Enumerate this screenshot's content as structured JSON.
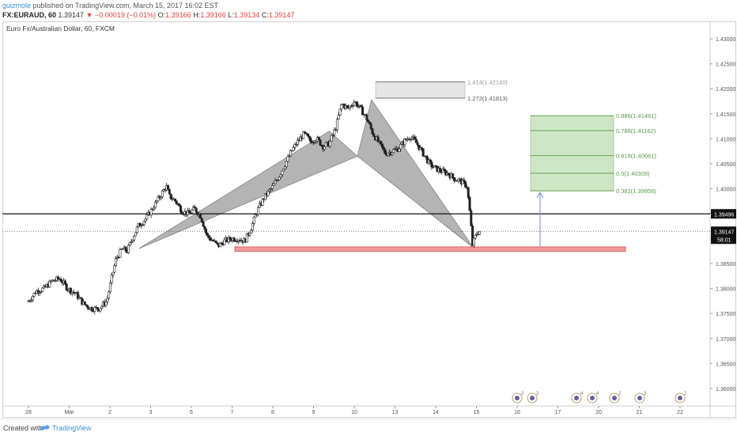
{
  "header": {
    "author": "guizmole",
    "published_text": "published on TradingView.com, March 15, 2017 16:02 EST",
    "symbol": "FX:EURAUD, 60",
    "last": "1.39147",
    "change": "−0.00019 (−0.01%)",
    "o_label": "O:",
    "o": "1.39166",
    "h_label": "H:",
    "h": "1.39166",
    "l_label": "L:",
    "l": "1.39134",
    "c_label": "C:",
    "c": "1.39147"
  },
  "footer": {
    "created_with": "Created with",
    "brand": "TradingView"
  },
  "colors": {
    "up": "#2a2a2a",
    "down": "#2a2a2a",
    "harmonic_fill": "#8c8c8c",
    "target_zone": "#cfe6c6",
    "target_line": "#5a9a48",
    "extension_fill": "#e6e6e6",
    "support_bar": "#f29a9a",
    "arrow": "#6f8fd1",
    "label_bg": "#111111"
  },
  "chart_data": {
    "type": "candlestick",
    "title": "Euro Fx/Australian Dollar, 60, FXCM",
    "xlabel": "",
    "ylabel": "",
    "x_ticks": [
      "28",
      "Mar",
      "2",
      "3",
      "6",
      "7",
      "8",
      "9",
      "10",
      "13",
      "14",
      "15",
      "16",
      "17",
      "20",
      "21",
      "22"
    ],
    "ylim": [
      1.3565,
      1.4335
    ],
    "y_ticks": [
      "1.43000",
      "1.42500",
      "1.42000",
      "1.41500",
      "1.41000",
      "1.40500",
      "1.40000",
      "1.39500",
      "1.39000",
      "1.38500",
      "1.38000",
      "1.37500",
      "1.37000",
      "1.36500",
      "1.36000"
    ],
    "trend_points": [
      [
        0,
        1.3775
      ],
      [
        0.5,
        1.3795
      ],
      [
        1.0,
        1.38
      ],
      [
        1.5,
        1.3815
      ],
      [
        2.0,
        1.382
      ],
      [
        2.5,
        1.38
      ],
      [
        3.0,
        1.379
      ],
      [
        3.5,
        1.377
      ],
      [
        4.0,
        1.376
      ],
      [
        4.5,
        1.376
      ],
      [
        5.0,
        1.3775
      ],
      [
        5.3,
        1.382
      ],
      [
        5.6,
        1.386
      ],
      [
        6.0,
        1.388
      ],
      [
        6.3,
        1.3875
      ],
      [
        6.7,
        1.3905
      ],
      [
        7.0,
        1.3925
      ],
      [
        7.5,
        1.394
      ],
      [
        8.0,
        1.3965
      ],
      [
        8.5,
        1.399
      ],
      [
        8.8,
        1.4005
      ],
      [
        9.0,
        1.3985
      ],
      [
        9.4,
        1.3975
      ],
      [
        9.8,
        1.3955
      ],
      [
        10.2,
        1.395
      ],
      [
        10.6,
        1.396
      ],
      [
        11.0,
        1.3945
      ],
      [
        11.4,
        1.3905
      ],
      [
        11.8,
        1.3895
      ],
      [
        12.1,
        1.3885
      ],
      [
        12.5,
        1.3895
      ],
      [
        13.0,
        1.39
      ],
      [
        13.4,
        1.39
      ],
      [
        13.8,
        1.3895
      ],
      [
        14.2,
        1.392
      ],
      [
        14.6,
        1.3955
      ],
      [
        15.0,
        1.398
      ],
      [
        15.5,
        1.4
      ],
      [
        16.0,
        1.4025
      ],
      [
        16.4,
        1.405
      ],
      [
        16.8,
        1.4075
      ],
      [
        17.2,
        1.4095
      ],
      [
        17.6,
        1.411
      ],
      [
        18.0,
        1.4095
      ],
      [
        18.4,
        1.41
      ],
      [
        18.8,
        1.4085
      ],
      [
        19.2,
        1.409
      ],
      [
        19.6,
        1.412
      ],
      [
        20.0,
        1.417
      ],
      [
        20.4,
        1.416
      ],
      [
        20.8,
        1.4175
      ],
      [
        21.2,
        1.416
      ],
      [
        21.6,
        1.414
      ],
      [
        22.0,
        1.411
      ],
      [
        22.4,
        1.409
      ],
      [
        22.8,
        1.407
      ],
      [
        23.2,
        1.4075
      ],
      [
        23.6,
        1.408
      ],
      [
        24.0,
        1.4095
      ],
      [
        24.4,
        1.4105
      ],
      [
        24.8,
        1.409
      ],
      [
        25.2,
        1.407
      ],
      [
        25.6,
        1.405
      ],
      [
        26.0,
        1.404
      ],
      [
        26.4,
        1.4035
      ],
      [
        26.8,
        1.403
      ],
      [
        27.2,
        1.402
      ],
      [
        27.6,
        1.4015
      ],
      [
        28.0,
        1.4005
      ],
      [
        28.2,
        1.3945
      ],
      [
        28.35,
        1.3888
      ],
      [
        28.6,
        1.391
      ],
      [
        28.8,
        1.3915
      ]
    ],
    "harmonic_pattern": [
      {
        "x": 7.05,
        "y": 1.388
      },
      {
        "x": 19.2,
        "y": 1.4115
      },
      {
        "x": 21.0,
        "y": 1.4065
      },
      {
        "x": 21.9,
        "y": 1.4178
      },
      {
        "x": 28.4,
        "y": 1.3882
      }
    ],
    "fib_extensions": [
      {
        "label": "1.414(1.42140)",
        "value": 1.4214
      },
      {
        "label": "1.272(1.41813)",
        "value": 1.41813
      }
    ],
    "fib_targets": [
      {
        "label": "0.886(1.41461)",
        "value": 1.41461
      },
      {
        "label": "0.786(1.41162)",
        "value": 1.41162
      },
      {
        "label": "0.618(1.40661)",
        "value": 1.40661
      },
      {
        "label": "0.5(1.40309)",
        "value": 1.40309
      },
      {
        "label": "0.382(1.39956)",
        "value": 1.39956
      }
    ],
    "support_zone": {
      "from": 1.38745,
      "to": 1.38835
    },
    "horizontal_line": {
      "value": 1.39496,
      "label": "1.39496"
    },
    "last_price": {
      "value": 1.39147,
      "label": "1.39147",
      "countdown": "58:01"
    },
    "events": [
      "3",
      "3",
      "4",
      "4",
      "2",
      "3",
      "2"
    ]
  }
}
